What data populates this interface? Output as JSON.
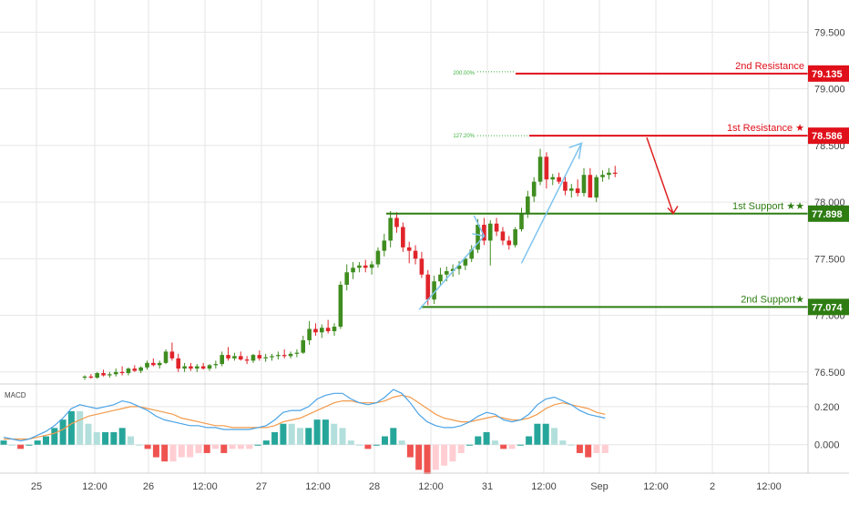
{
  "colors": {
    "up": "#3f8c1f",
    "down": "#e0242a",
    "resistance": "#e0101a",
    "support": "#2e7d12",
    "macd_line": "#4aa3e6",
    "signal_line": "#f39a4a",
    "hist_up_strong": "#26a69a",
    "hist_up_weak": "#b2dfdb",
    "hist_down_strong": "#ef5350",
    "hist_down_weak": "#ffcdd2",
    "arrow_blue": "#7fc4ee",
    "arrow_red": "#e02020",
    "fib": "#3fb33f",
    "axis_text": "#444444",
    "grid": "#e6e6e6"
  },
  "chart_data": {
    "type": "candlestick",
    "x_ticks": [
      "25",
      "12:00",
      "26",
      "12:00",
      "27",
      "12:00",
      "28",
      "12:00",
      "31",
      "12:00",
      "Sep",
      "12:00",
      "2",
      "12:00"
    ],
    "price_ticks": [
      "79.500",
      "79.000",
      "78.500",
      "78.000",
      "77.500",
      "77.000",
      "76.500"
    ],
    "price_tick_values": [
      79.5,
      79.0,
      78.5,
      78.0,
      77.5,
      77.0,
      76.5
    ],
    "ylim": [
      76.41,
      79.72
    ],
    "candles": [
      [
        76.45,
        76.47,
        76.43,
        76.46
      ],
      [
        76.46,
        76.48,
        76.44,
        76.45
      ],
      [
        76.45,
        76.5,
        76.44,
        76.49
      ],
      [
        76.49,
        76.52,
        76.46,
        76.47
      ],
      [
        76.47,
        76.5,
        76.45,
        76.48
      ],
      [
        76.48,
        76.53,
        76.46,
        76.5
      ],
      [
        76.5,
        76.55,
        76.47,
        76.49
      ],
      [
        76.49,
        76.54,
        76.47,
        76.53
      ],
      [
        76.53,
        76.56,
        76.5,
        76.51
      ],
      [
        76.51,
        76.55,
        76.49,
        76.54
      ],
      [
        76.54,
        76.6,
        76.52,
        76.58
      ],
      [
        76.58,
        76.62,
        76.55,
        76.56
      ],
      [
        76.56,
        76.6,
        76.53,
        76.58
      ],
      [
        76.58,
        76.7,
        76.57,
        76.68
      ],
      [
        76.68,
        76.76,
        76.6,
        76.62
      ],
      [
        76.62,
        76.66,
        76.5,
        76.53
      ],
      [
        76.53,
        76.58,
        76.5,
        76.55
      ],
      [
        76.55,
        76.58,
        76.51,
        76.53
      ],
      [
        76.53,
        76.57,
        76.5,
        76.55
      ],
      [
        76.55,
        76.58,
        76.52,
        76.53
      ],
      [
        76.53,
        76.57,
        76.51,
        76.56
      ],
      [
        76.56,
        76.6,
        76.53,
        76.57
      ],
      [
        76.57,
        76.68,
        76.55,
        76.65
      ],
      [
        76.65,
        76.72,
        76.6,
        76.62
      ],
      [
        76.62,
        76.67,
        76.6,
        76.64
      ],
      [
        76.64,
        76.68,
        76.6,
        76.61
      ],
      [
        76.61,
        76.64,
        76.57,
        76.6
      ],
      [
        76.6,
        76.66,
        76.58,
        76.65
      ],
      [
        76.65,
        76.69,
        76.6,
        76.62
      ],
      [
        76.62,
        76.66,
        76.59,
        76.63
      ],
      [
        76.63,
        76.66,
        76.6,
        76.64
      ],
      [
        76.64,
        76.68,
        76.61,
        76.65
      ],
      [
        76.65,
        76.7,
        76.62,
        76.64
      ],
      [
        76.64,
        76.68,
        76.62,
        76.66
      ],
      [
        76.66,
        76.7,
        76.63,
        76.67
      ],
      [
        76.67,
        76.82,
        76.66,
        76.78
      ],
      [
        76.78,
        76.95,
        76.74,
        76.88
      ],
      [
        76.88,
        76.93,
        76.82,
        76.85
      ],
      [
        76.85,
        76.92,
        76.8,
        76.89
      ],
      [
        76.89,
        76.96,
        76.84,
        76.86
      ],
      [
        76.86,
        76.93,
        76.82,
        76.9
      ],
      [
        76.9,
        77.3,
        76.88,
        77.27
      ],
      [
        77.27,
        77.45,
        77.22,
        77.38
      ],
      [
        77.38,
        77.47,
        77.32,
        77.42
      ],
      [
        77.42,
        77.47,
        77.38,
        77.44
      ],
      [
        77.44,
        77.49,
        77.38,
        77.42
      ],
      [
        77.42,
        77.48,
        77.36,
        77.45
      ],
      [
        77.45,
        77.6,
        77.42,
        77.57
      ],
      [
        77.57,
        77.72,
        77.52,
        77.66
      ],
      [
        77.66,
        77.92,
        77.6,
        77.86
      ],
      [
        77.86,
        77.91,
        77.73,
        77.78
      ],
      [
        77.78,
        77.82,
        77.56,
        77.6
      ],
      [
        77.6,
        77.65,
        77.46,
        77.57
      ],
      [
        77.57,
        77.62,
        77.45,
        77.5
      ],
      [
        77.5,
        77.56,
        77.33,
        77.36
      ],
      [
        77.36,
        77.4,
        77.09,
        77.14
      ],
      [
        77.14,
        77.35,
        77.1,
        77.3
      ],
      [
        77.3,
        77.42,
        77.26,
        77.36
      ],
      [
        77.36,
        77.43,
        77.3,
        77.39
      ],
      [
        77.39,
        77.45,
        77.34,
        77.41
      ],
      [
        77.41,
        77.48,
        77.36,
        77.44
      ],
      [
        77.44,
        77.52,
        77.4,
        77.5
      ],
      [
        77.5,
        77.62,
        77.47,
        77.58
      ],
      [
        77.58,
        77.85,
        77.55,
        77.8
      ],
      [
        77.8,
        77.86,
        77.62,
        77.66
      ],
      [
        77.66,
        77.84,
        77.44,
        77.81
      ],
      [
        77.81,
        77.86,
        77.7,
        77.74
      ],
      [
        77.74,
        77.78,
        77.62,
        77.66
      ],
      [
        77.66,
        77.7,
        77.58,
        77.62
      ],
      [
        77.62,
        77.78,
        77.6,
        77.76
      ],
      [
        77.76,
        77.95,
        77.74,
        77.9
      ],
      [
        77.9,
        78.1,
        77.86,
        78.05
      ],
      [
        78.05,
        78.22,
        78.0,
        78.18
      ],
      [
        78.18,
        78.47,
        78.15,
        78.4
      ],
      [
        78.4,
        78.44,
        78.12,
        78.2
      ],
      [
        78.2,
        78.25,
        78.15,
        78.22
      ],
      [
        78.22,
        78.26,
        78.16,
        78.18
      ],
      [
        78.18,
        78.24,
        78.06,
        78.1
      ],
      [
        78.1,
        78.16,
        78.04,
        78.12
      ],
      [
        78.12,
        78.2,
        78.05,
        78.08
      ],
      [
        78.08,
        78.3,
        78.05,
        78.24
      ],
      [
        78.24,
        78.3,
        78.06,
        78.04
      ],
      [
        78.04,
        78.24,
        78.0,
        78.22
      ],
      [
        78.22,
        78.28,
        78.18,
        78.24
      ],
      [
        78.24,
        78.3,
        78.2,
        78.26
      ],
      [
        78.26,
        78.32,
        78.22,
        78.25
      ]
    ],
    "macd_line": [
      0.04,
      0.03,
      0.02,
      0.03,
      0.05,
      0.07,
      0.1,
      0.14,
      0.19,
      0.21,
      0.2,
      0.19,
      0.2,
      0.21,
      0.23,
      0.22,
      0.2,
      0.18,
      0.15,
      0.13,
      0.12,
      0.11,
      0.1,
      0.1,
      0.09,
      0.09,
      0.08,
      0.08,
      0.08,
      0.08,
      0.09,
      0.1,
      0.13,
      0.17,
      0.18,
      0.18,
      0.2,
      0.24,
      0.26,
      0.27,
      0.27,
      0.24,
      0.22,
      0.21,
      0.22,
      0.25,
      0.29,
      0.27,
      0.22,
      0.16,
      0.12,
      0.1,
      0.09,
      0.09,
      0.1,
      0.12,
      0.15,
      0.17,
      0.16,
      0.13,
      0.12,
      0.13,
      0.16,
      0.21,
      0.24,
      0.25,
      0.23,
      0.21,
      0.18,
      0.16,
      0.15,
      0.14
    ],
    "signal_line": [
      0.03,
      0.03,
      0.03,
      0.03,
      0.04,
      0.05,
      0.06,
      0.08,
      0.11,
      0.13,
      0.15,
      0.16,
      0.17,
      0.18,
      0.19,
      0.2,
      0.2,
      0.19,
      0.18,
      0.17,
      0.16,
      0.14,
      0.13,
      0.12,
      0.11,
      0.1,
      0.1,
      0.09,
      0.09,
      0.09,
      0.09,
      0.09,
      0.1,
      0.12,
      0.13,
      0.14,
      0.16,
      0.18,
      0.2,
      0.22,
      0.23,
      0.23,
      0.22,
      0.22,
      0.22,
      0.23,
      0.25,
      0.26,
      0.25,
      0.22,
      0.19,
      0.16,
      0.14,
      0.13,
      0.12,
      0.12,
      0.13,
      0.14,
      0.15,
      0.14,
      0.13,
      0.13,
      0.14,
      0.16,
      0.19,
      0.21,
      0.22,
      0.21,
      0.2,
      0.19,
      0.17,
      0.16
    ],
    "macd_ticks": [
      "0.200",
      "0.000"
    ],
    "macd_tick_values": [
      0.2,
      0.0
    ],
    "macd_ylim": [
      -0.14,
      0.3
    ]
  },
  "panels": {
    "macd_label": "MACD"
  },
  "levels": {
    "res2": {
      "label": "2nd Resistance",
      "price": 79.135,
      "tag": "79.135",
      "fib": "200.00%"
    },
    "res1": {
      "label": "1st Resistance ★",
      "price": 78.586,
      "tag": "78.586",
      "fib": "127.20%"
    },
    "sup1": {
      "label": "1st Support ★★",
      "price": 77.898,
      "tag": "77.898"
    },
    "sup2": {
      "label": "2nd Support★",
      "price": 77.074,
      "tag": "77.074"
    }
  }
}
